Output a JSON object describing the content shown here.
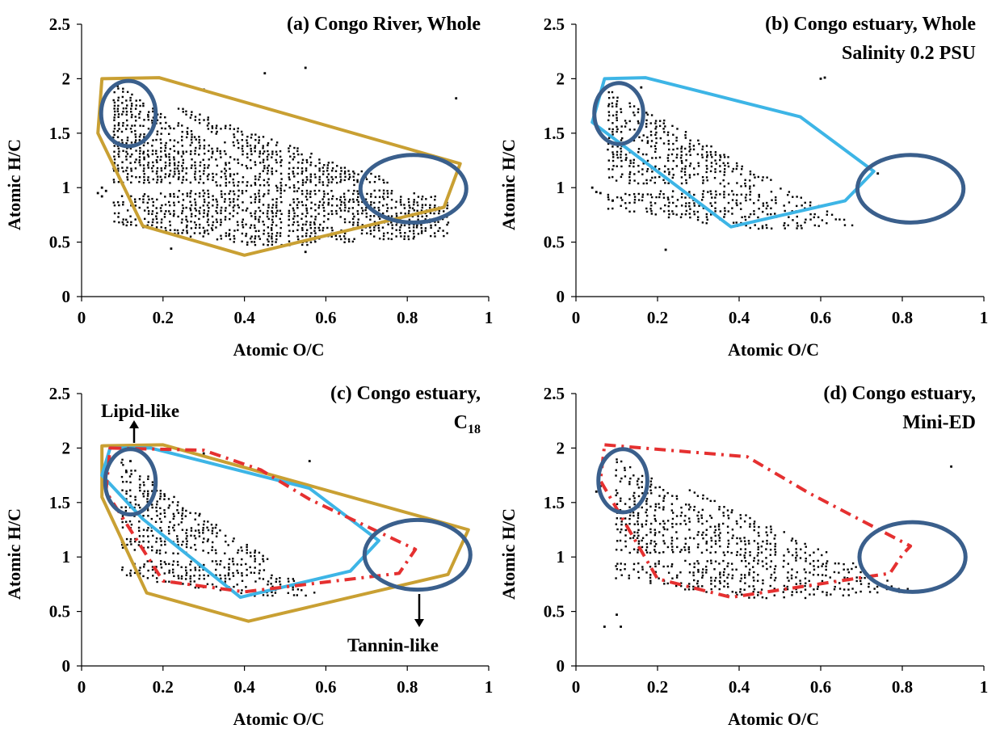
{
  "chart_data": [
    {
      "id": "a",
      "type": "scatter",
      "title_lines": [
        "(a) Congo River, Whole"
      ],
      "xlabel": "Atomic O/C",
      "ylabel": "Atomic H/C",
      "xlim": [
        0,
        1
      ],
      "ylim": [
        0,
        2.5
      ],
      "xticks": [
        "0",
        "0.2",
        "0.4",
        "0.6",
        "0.8",
        "1"
      ],
      "yticks": [
        "0",
        "0.5",
        "1",
        "1.5",
        "2",
        "2.5"
      ],
      "cloud": {
        "xmin": 0.08,
        "xmax": 0.9,
        "hmin": 0.45,
        "hmax": 1.95,
        "pivot": [
          0.5,
          1.0
        ],
        "upper_right": 0.88,
        "density": 1.0
      },
      "outliers": [
        [
          0.04,
          0.95
        ],
        [
          0.05,
          0.92
        ],
        [
          0.06,
          0.97
        ],
        [
          0.05,
          1.0
        ],
        [
          0.55,
          2.1
        ],
        [
          0.92,
          1.82
        ],
        [
          0.22,
          0.44
        ],
        [
          0.55,
          0.41
        ],
        [
          0.45,
          2.05
        ],
        [
          0.3,
          1.9
        ]
      ],
      "envelopes": [
        {
          "name": "Congo River, Whole",
          "color": "#c9a033",
          "style": "solid",
          "points": [
            [
              0.05,
              2.0
            ],
            [
              0.19,
              2.01
            ],
            [
              0.93,
              1.22
            ],
            [
              0.89,
              0.82
            ],
            [
              0.4,
              0.38
            ],
            [
              0.15,
              0.65
            ],
            [
              0.04,
              1.5
            ]
          ]
        }
      ],
      "ellipses": [
        {
          "name": "lipid-like",
          "color": "#3a5f8c",
          "cx": 0.115,
          "cy": 1.68,
          "rx": 0.067,
          "ry": 0.3
        },
        {
          "name": "tannin-like",
          "color": "#3a5f8c",
          "cx": 0.815,
          "cy": 0.99,
          "rx": 0.13,
          "ry": 0.31
        }
      ]
    },
    {
      "id": "b",
      "type": "scatter",
      "title_lines": [
        "(b) Congo estuary, Whole",
        "Salinity 0.2 PSU"
      ],
      "xlabel": "Atomic O/C",
      "ylabel": "Atomic H/C",
      "xlim": [
        0,
        1
      ],
      "ylim": [
        0,
        2.5
      ],
      "xticks": [
        "0",
        "0.2",
        "0.4",
        "0.6",
        "0.8",
        "1"
      ],
      "yticks": [
        "0",
        "0.5",
        "1",
        "1.5",
        "2",
        "2.5"
      ],
      "cloud": {
        "xmin": 0.08,
        "xmax": 0.72,
        "hmin": 0.6,
        "hmax": 1.9,
        "pivot": [
          0.5,
          1.0
        ],
        "upper_right": 0.58,
        "density": 0.7
      },
      "outliers": [
        [
          0.04,
          1.0
        ],
        [
          0.05,
          0.96
        ],
        [
          0.06,
          0.95
        ],
        [
          0.09,
          0.88
        ],
        [
          0.6,
          2.0
        ],
        [
          0.61,
          2.01
        ],
        [
          0.22,
          0.43
        ],
        [
          0.74,
          1.13
        ],
        [
          0.16,
          1.92
        ]
      ],
      "envelopes": [
        {
          "name": "Congo estuary, Whole",
          "color": "#3db5e6",
          "style": "solid",
          "points": [
            [
              0.07,
              2.0
            ],
            [
              0.17,
              2.01
            ],
            [
              0.55,
              1.65
            ],
            [
              0.73,
              1.15
            ],
            [
              0.66,
              0.88
            ],
            [
              0.38,
              0.64
            ],
            [
              0.04,
              1.6
            ]
          ]
        }
      ],
      "ellipses": [
        {
          "name": "lipid-like",
          "color": "#3a5f8c",
          "cx": 0.105,
          "cy": 1.68,
          "rx": 0.06,
          "ry": 0.28
        },
        {
          "name": "tannin-like",
          "color": "#3a5f8c",
          "cx": 0.82,
          "cy": 0.99,
          "rx": 0.13,
          "ry": 0.31
        }
      ]
    },
    {
      "id": "c",
      "type": "scatter",
      "title_lines": [
        "(c) Congo estuary,",
        "C18"
      ],
      "xlabel": "Atomic O/C",
      "ylabel": "Atomic H/C",
      "xlim": [
        0,
        1
      ],
      "ylim": [
        0,
        2.5
      ],
      "xticks": [
        "0",
        "0.2",
        "0.4",
        "0.6",
        "0.8",
        "1"
      ],
      "yticks": [
        "0",
        "0.5",
        "1",
        "1.5",
        "2",
        "2.5"
      ],
      "annotations": {
        "lipid": "Lipid-like",
        "tannin": "Tannin-like"
      },
      "cloud": {
        "xmin": 0.1,
        "xmax": 0.64,
        "hmin": 0.62,
        "hmax": 1.9,
        "pivot": [
          0.5,
          1.0
        ],
        "upper_right": 0.52,
        "density": 0.75
      },
      "outliers": [
        [
          0.11,
          1.78
        ],
        [
          0.12,
          1.88
        ],
        [
          0.56,
          1.88
        ],
        [
          0.3,
          1.95
        ]
      ],
      "envelopes": [
        {
          "name": "Congo River, Whole",
          "color": "#c9a033",
          "style": "solid",
          "points": [
            [
              0.05,
              2.02
            ],
            [
              0.2,
              2.03
            ],
            [
              0.95,
              1.25
            ],
            [
              0.9,
              0.84
            ],
            [
              0.41,
              0.41
            ],
            [
              0.16,
              0.67
            ],
            [
              0.05,
              1.55
            ]
          ]
        },
        {
          "name": "Congo estuary, Whole",
          "color": "#3db5e6",
          "style": "solid",
          "points": [
            [
              0.07,
              2.0
            ],
            [
              0.17,
              2.0
            ],
            [
              0.56,
              1.63
            ],
            [
              0.73,
              1.15
            ],
            [
              0.66,
              0.87
            ],
            [
              0.39,
              0.63
            ],
            [
              0.15,
              1.35
            ],
            [
              0.05,
              1.75
            ]
          ]
        },
        {
          "name": "Congo estuary, C18",
          "color": "#e53030",
          "style": "dashed",
          "points": [
            [
              0.07,
              2.0
            ],
            [
              0.3,
              1.98
            ],
            [
              0.44,
              1.8
            ],
            [
              0.56,
              1.53
            ],
            [
              0.82,
              1.07
            ],
            [
              0.78,
              0.85
            ],
            [
              0.4,
              0.68
            ],
            [
              0.2,
              0.78
            ],
            [
              0.06,
              1.6
            ]
          ]
        }
      ],
      "ellipses": [
        {
          "name": "lipid-like",
          "color": "#3a5f8c",
          "cx": 0.12,
          "cy": 1.69,
          "rx": 0.062,
          "ry": 0.3
        },
        {
          "name": "tannin-like",
          "color": "#3a5f8c",
          "cx": 0.825,
          "cy": 1.02,
          "rx": 0.13,
          "ry": 0.32
        }
      ]
    },
    {
      "id": "d",
      "type": "scatter",
      "title_lines": [
        "(d) Congo estuary,",
        "Mini-ED"
      ],
      "xlabel": "Atomic O/C",
      "ylabel": "Atomic H/C",
      "xlim": [
        0,
        1
      ],
      "ylim": [
        0,
        2.5
      ],
      "xticks": [
        "0",
        "0.2",
        "0.4",
        "0.6",
        "0.8",
        "1"
      ],
      "yticks": [
        "0",
        "0.5",
        "1",
        "1.5",
        "2",
        "2.5"
      ],
      "cloud": {
        "xmin": 0.1,
        "xmax": 0.82,
        "hmin": 0.6,
        "hmax": 1.92,
        "pivot": [
          0.5,
          1.0
        ],
        "upper_right": 0.7,
        "density": 0.7
      },
      "outliers": [
        [
          0.07,
          0.36
        ],
        [
          0.1,
          0.47
        ],
        [
          0.11,
          0.36
        ],
        [
          0.92,
          1.83
        ],
        [
          0.05,
          1.6
        ],
        [
          0.06,
          1.65
        ]
      ],
      "envelopes": [
        {
          "name": "Congo estuary, Mini-ED",
          "color": "#e53030",
          "style": "dashed",
          "points": [
            [
              0.07,
              2.03
            ],
            [
              0.42,
              1.92
            ],
            [
              0.57,
              1.59
            ],
            [
              0.82,
              1.1
            ],
            [
              0.8,
              1.02
            ],
            [
              0.77,
              0.85
            ],
            [
              0.38,
              0.63
            ],
            [
              0.2,
              0.8
            ],
            [
              0.06,
              1.7
            ]
          ]
        }
      ],
      "ellipses": [
        {
          "name": "lipid-like",
          "color": "#3a5f8c",
          "cx": 0.115,
          "cy": 1.7,
          "rx": 0.06,
          "ry": 0.29
        },
        {
          "name": "tannin-like",
          "color": "#3a5f8c",
          "cx": 0.825,
          "cy": 1.0,
          "rx": 0.13,
          "ry": 0.32
        }
      ]
    }
  ]
}
